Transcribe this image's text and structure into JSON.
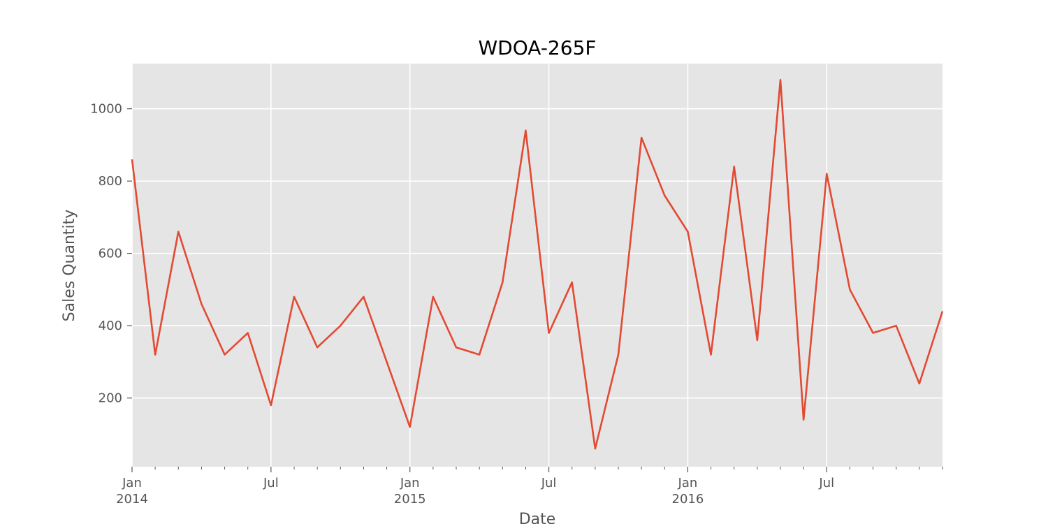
{
  "chart_data": {
    "type": "line",
    "title": "WDOA-265F",
    "xlabel": "Date",
    "ylabel": "Sales Quantity",
    "xlim": [
      "2014-01",
      "2016-12"
    ],
    "ylim": [
      10,
      1125
    ],
    "grid": true,
    "legend": "none",
    "colors": {
      "line": "#E24A33",
      "plot_background": "#E5E5E5",
      "grid": "#FFFFFF",
      "text": "#555555"
    },
    "x_ticks_major": [
      {
        "date": "2014-01",
        "label": "Jan",
        "sublabel": "2014"
      },
      {
        "date": "2014-07",
        "label": "Jul",
        "sublabel": ""
      },
      {
        "date": "2015-01",
        "label": "Jan",
        "sublabel": "2015"
      },
      {
        "date": "2015-07",
        "label": "Jul",
        "sublabel": ""
      },
      {
        "date": "2016-01",
        "label": "Jan",
        "sublabel": "2016"
      },
      {
        "date": "2016-07",
        "label": "Jul",
        "sublabel": ""
      }
    ],
    "y_ticks": [
      200,
      400,
      600,
      800,
      1000
    ],
    "x": [
      "2014-01",
      "2014-02",
      "2014-03",
      "2014-04",
      "2014-05",
      "2014-06",
      "2014-07",
      "2014-08",
      "2014-09",
      "2014-10",
      "2014-11",
      "2014-12",
      "2015-01",
      "2015-02",
      "2015-03",
      "2015-04",
      "2015-05",
      "2015-06",
      "2015-07",
      "2015-08",
      "2015-09",
      "2015-10",
      "2015-11",
      "2015-12",
      "2016-01",
      "2016-02",
      "2016-03",
      "2016-04",
      "2016-05",
      "2016-06",
      "2016-07",
      "2016-08",
      "2016-09",
      "2016-10",
      "2016-11",
      "2016-12"
    ],
    "series": [
      {
        "values": [
          860,
          320,
          660,
          460,
          320,
          380,
          180,
          480,
          340,
          400,
          480,
          300,
          120,
          480,
          340,
          320,
          520,
          940,
          380,
          520,
          60,
          320,
          920,
          760,
          660,
          320,
          840,
          360,
          1080,
          140,
          820,
          500,
          380,
          400,
          240,
          440
        ]
      }
    ]
  }
}
